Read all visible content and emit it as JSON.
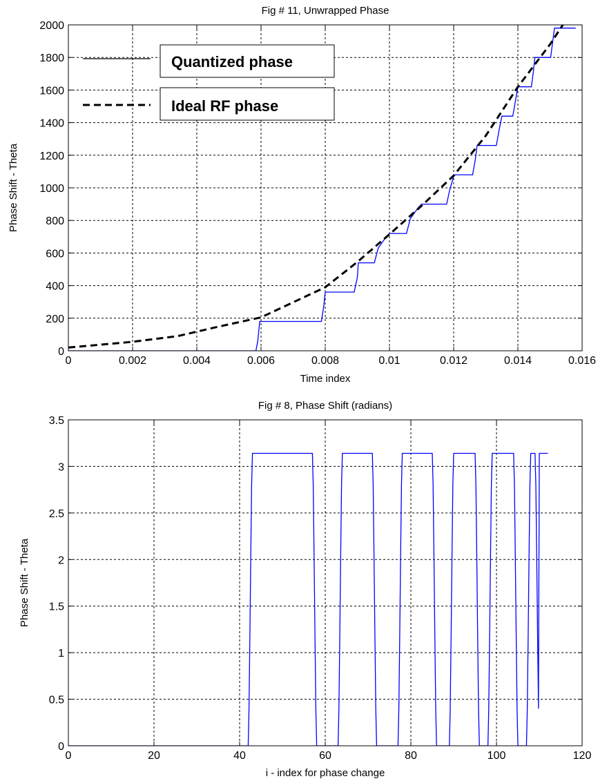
{
  "chart_data": [
    {
      "type": "line",
      "title": "Fig # 11, Unwrapped Phase",
      "xlabel": "Time index",
      "ylabel": "Phase Shift - Theta",
      "xlim": [
        0,
        0.016
      ],
      "ylim": [
        0,
        2000
      ],
      "xticks": [
        0,
        0.002,
        0.004,
        0.006,
        0.008,
        0.01,
        0.012,
        0.014,
        0.016
      ],
      "xtick_labels": [
        "0",
        "0.002",
        "0.004",
        "0.006",
        "0.008",
        "0.01",
        "0.012",
        "0.014",
        "0.016"
      ],
      "yticks": [
        0,
        200,
        400,
        600,
        800,
        1000,
        1200,
        1400,
        1600,
        1800,
        2000
      ],
      "ytick_labels": [
        "0",
        "200",
        "400",
        "600",
        "800",
        "1000",
        "1200",
        "1400",
        "1600",
        "1800",
        "2000"
      ],
      "grid": true,
      "legend": "top-left",
      "series": [
        {
          "name": "Quantized phase",
          "style": "solid",
          "color": "#0000ff",
          "x": [
            0,
            0.00584,
            0.0059,
            0.00593,
            0.00596,
            0.006,
            0.00788,
            0.00795,
            0.008,
            0.0089,
            0.009,
            0.00903,
            0.00953,
            0.00965,
            0.0099,
            0.01,
            0.0101,
            0.01053,
            0.01065,
            0.0109,
            0.011,
            0.0111,
            0.01178,
            0.01188,
            0.012,
            0.01205,
            0.01259,
            0.01267,
            0.01273,
            0.01333,
            0.01341,
            0.0135,
            0.01384,
            0.01392,
            0.014,
            0.01442,
            0.01448,
            0.01453,
            0.01502,
            0.01508,
            0.01514,
            0.0154,
            0.01546,
            0.01553,
            0.0158
          ],
          "y": [
            0,
            0,
            60,
            120,
            180,
            180,
            180,
            270,
            360,
            360,
            450,
            540,
            540,
            630,
            700,
            720,
            720,
            720,
            810,
            880,
            900,
            900,
            900,
            990,
            1070,
            1080,
            1080,
            1170,
            1260,
            1260,
            1350,
            1440,
            1440,
            1530,
            1620,
            1620,
            1710,
            1800,
            1800,
            1890,
            1980,
            1980,
            1980,
            1980,
            1980
          ]
        },
        {
          "name": "Ideal RF phase",
          "style": "dashed",
          "color": "#000000",
          "x": [
            0,
            0.002,
            0.0034,
            0.0046,
            0.006,
            0.008,
            0.009,
            0.01,
            0.011,
            0.012,
            0.013,
            0.014,
            0.015,
            0.0154
          ],
          "y": [
            20,
            55,
            90,
            145,
            205,
            390,
            545,
            715,
            890,
            1075,
            1320,
            1620,
            1880,
            2000
          ]
        }
      ]
    },
    {
      "type": "line",
      "title": "Fig # 8, Phase Shift (radians)",
      "xlabel": "i - index for phase change",
      "ylabel": "Phase Shift - Theta",
      "xlim": [
        0,
        120
      ],
      "ylim": [
        0,
        3.5
      ],
      "xticks": [
        0,
        20,
        40,
        60,
        80,
        100,
        120
      ],
      "xtick_labels": [
        "0",
        "20",
        "40",
        "60",
        "80",
        "100",
        "120"
      ],
      "yticks": [
        0,
        0.5,
        1,
        1.5,
        2,
        2.5,
        3,
        3.5
      ],
      "ytick_labels": [
        "0",
        "0.5",
        "1",
        "1.5",
        "2",
        "2.5",
        "3",
        "3.5"
      ],
      "grid": true,
      "series": [
        {
          "color": "#0000ff",
          "x": [
            0,
            42,
            42.2,
            42.4,
            42.6,
            42.8,
            43,
            57,
            57.2,
            57.4,
            57.6,
            57.8,
            58,
            63,
            63.2,
            63.4,
            63.6,
            63.8,
            64,
            71,
            71.2,
            71.4,
            71.6,
            71.8,
            72,
            77,
            77.2,
            77.4,
            77.6,
            77.8,
            78,
            85,
            85.2,
            85.4,
            85.6,
            85.8,
            86,
            89,
            89.2,
            89.4,
            89.6,
            89.8,
            90,
            95,
            95.2,
            95.4,
            95.6,
            95.8,
            96,
            98,
            98.2,
            98.4,
            98.6,
            98.8,
            99,
            104,
            104.2,
            104.4,
            104.6,
            104.8,
            105,
            107,
            107.2,
            107.4,
            107.6,
            107.8,
            108,
            109,
            109.2,
            109.4,
            109.6,
            109.8,
            110,
            112
          ],
          "y": [
            0,
            0,
            0.4,
            1.2,
            2.0,
            2.8,
            3.14,
            3.14,
            2.8,
            2.0,
            1.2,
            0.4,
            0,
            0,
            0.4,
            1.2,
            2.0,
            2.8,
            3.14,
            3.14,
            2.8,
            2.0,
            1.2,
            0.4,
            0,
            0,
            0.4,
            1.2,
            2.0,
            2.8,
            3.14,
            3.14,
            2.8,
            2.0,
            1.2,
            0.4,
            0,
            0,
            0.4,
            1.2,
            2.0,
            2.8,
            3.14,
            3.14,
            2.8,
            2.0,
            1.2,
            0.4,
            0,
            0,
            0.4,
            1.2,
            2.0,
            2.8,
            3.14,
            3.14,
            2.8,
            2.0,
            1.2,
            0.4,
            0,
            0,
            0.4,
            1.2,
            2.0,
            2.8,
            3.14,
            3.14,
            2.8,
            2.0,
            1.2,
            0.4,
            3.14,
            3.14
          ]
        }
      ]
    }
  ]
}
